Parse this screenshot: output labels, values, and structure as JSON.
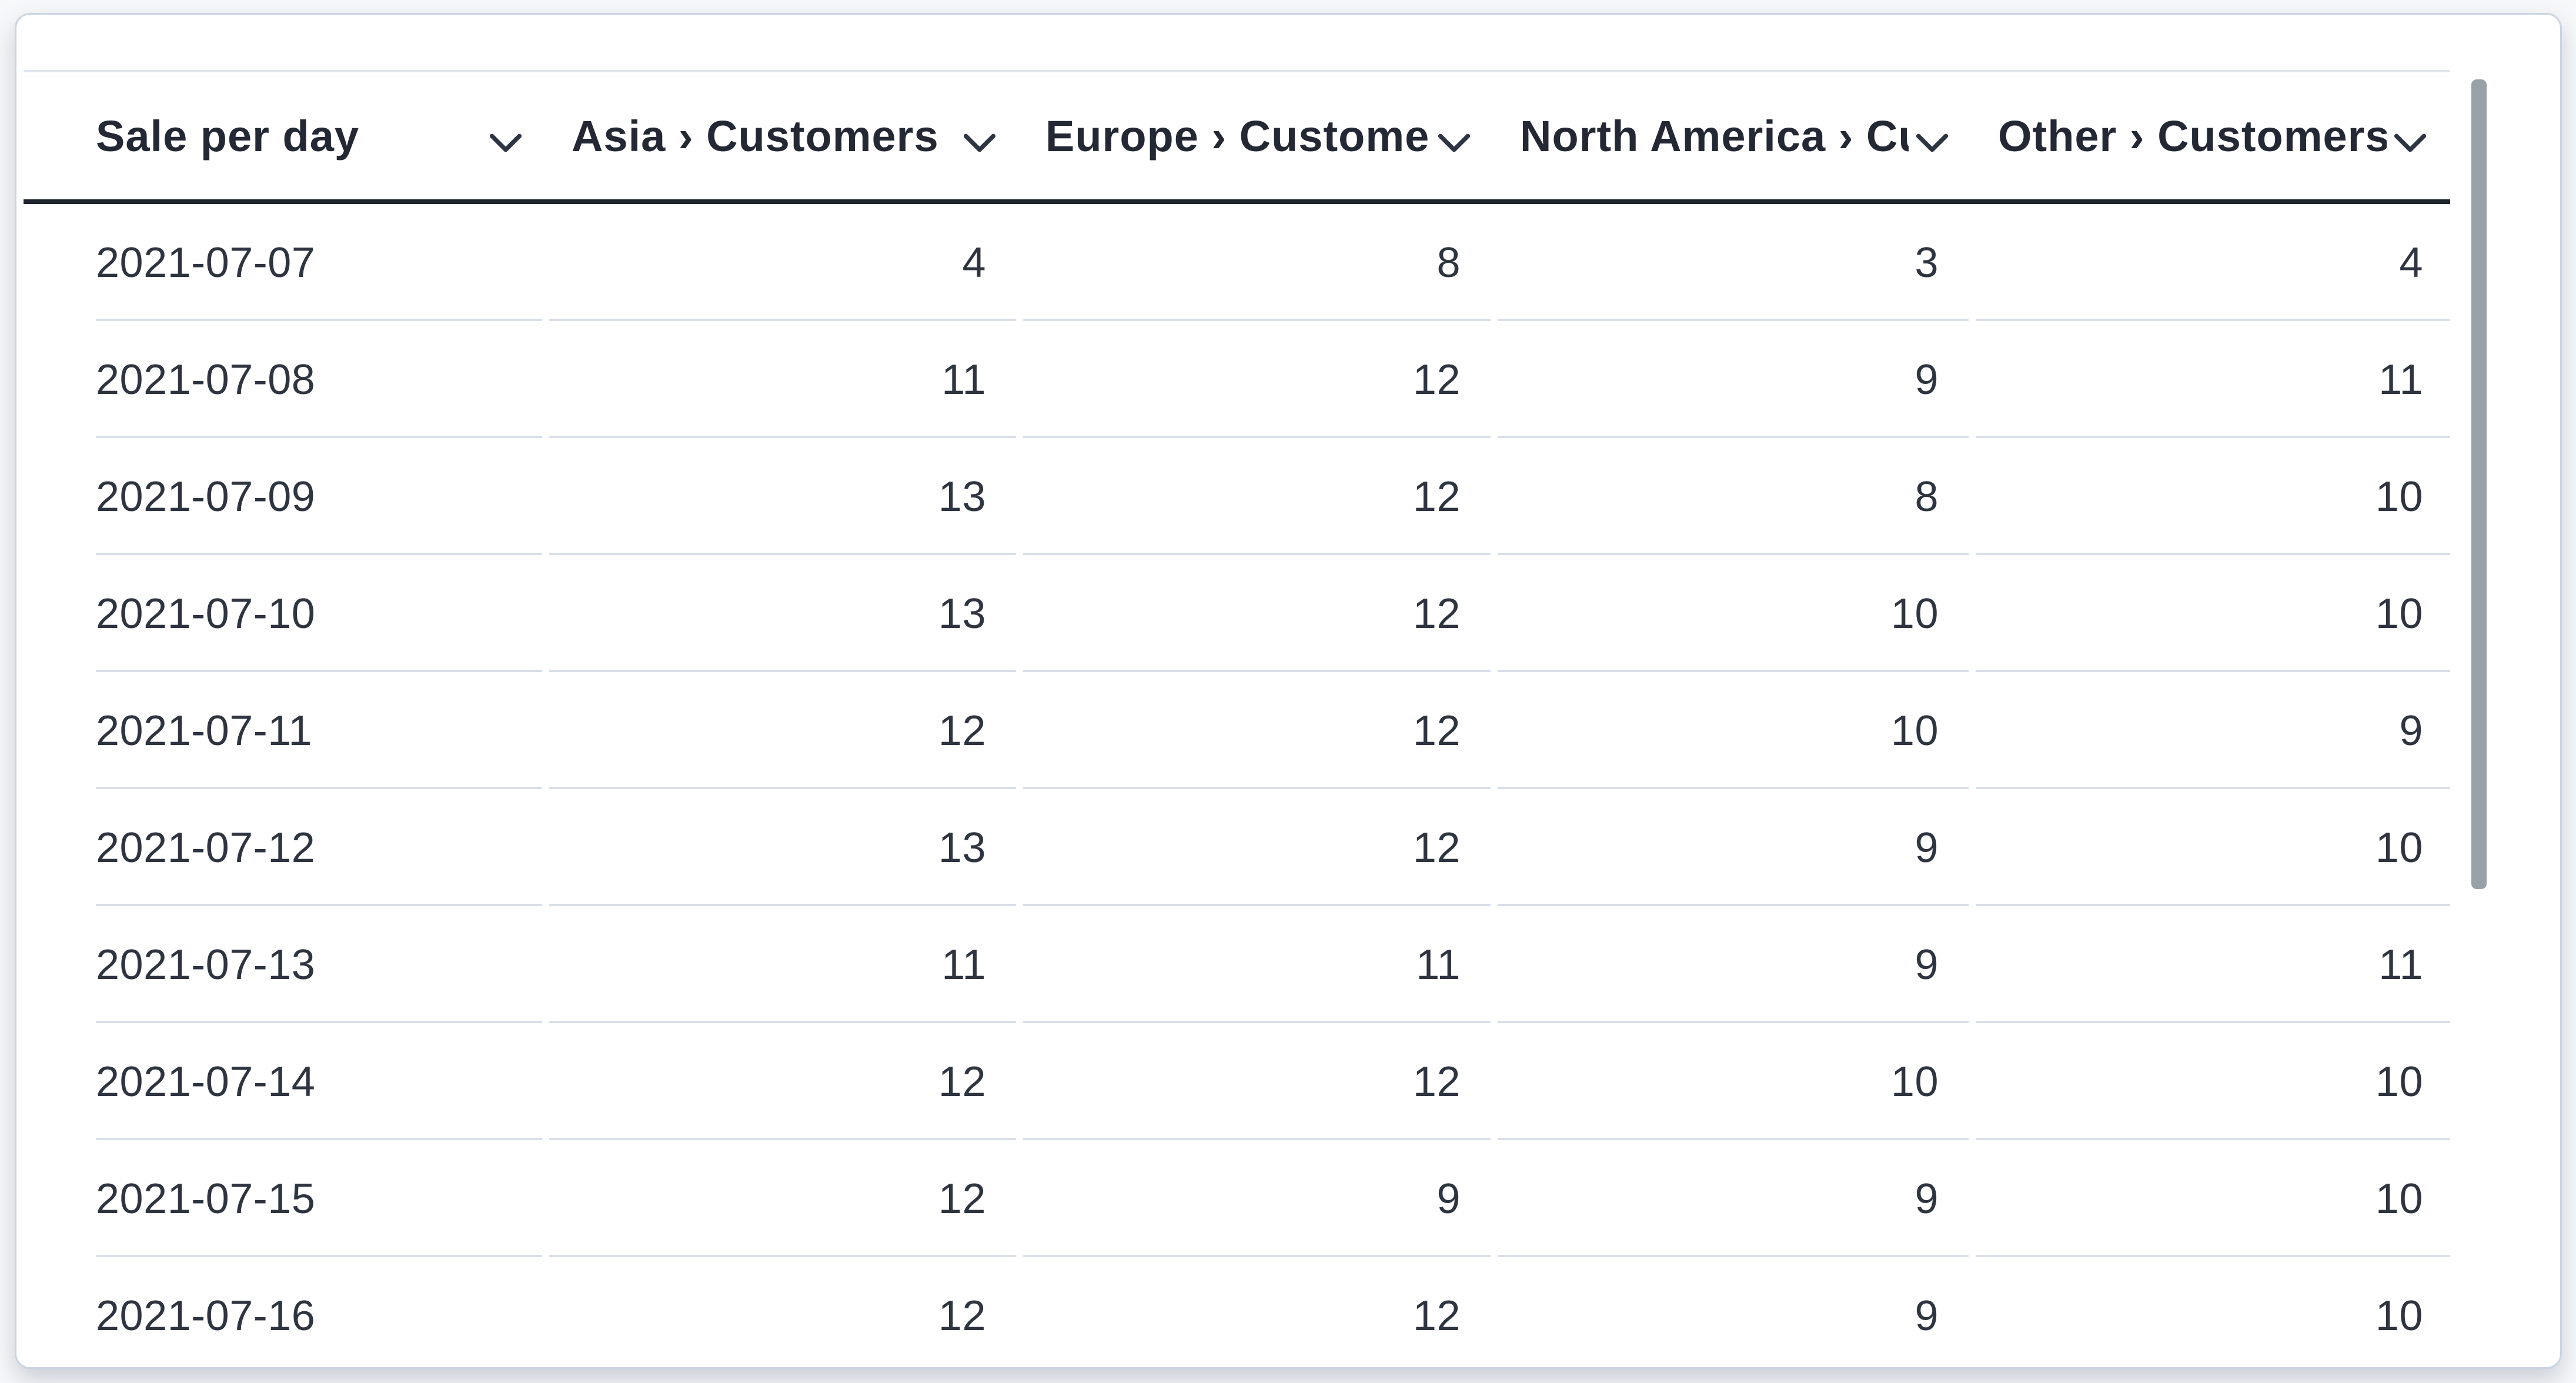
{
  "card": {
    "kind": "table-card"
  },
  "table": {
    "columns": [
      {
        "id": "date",
        "label": "Sale per day",
        "align": "left"
      },
      {
        "id": "asia",
        "label": "Asia › Customers",
        "align": "right"
      },
      {
        "id": "europe",
        "label": "Europe › Customers",
        "align": "right"
      },
      {
        "id": "north_america",
        "label": "North America › Customers",
        "align": "right"
      },
      {
        "id": "other",
        "label": "Other › Customers",
        "align": "right"
      }
    ],
    "rows": [
      [
        "2021-07-07",
        "4",
        "8",
        "3",
        "4"
      ],
      [
        "2021-07-08",
        "11",
        "12",
        "9",
        "11"
      ],
      [
        "2021-07-09",
        "13",
        "12",
        "8",
        "10"
      ],
      [
        "2021-07-10",
        "13",
        "12",
        "10",
        "10"
      ],
      [
        "2021-07-11",
        "12",
        "12",
        "10",
        "9"
      ],
      [
        "2021-07-12",
        "13",
        "12",
        "9",
        "10"
      ],
      [
        "2021-07-13",
        "11",
        "11",
        "9",
        "11"
      ],
      [
        "2021-07-14",
        "12",
        "12",
        "10",
        "10"
      ],
      [
        "2021-07-15",
        "12",
        "9",
        "9",
        "10"
      ],
      [
        "2021-07-16",
        "12",
        "12",
        "9",
        "10"
      ]
    ]
  },
  "icons": {
    "header_dropdown": "chevron-down-icon"
  },
  "scrollbar": {
    "orientation": "vertical"
  },
  "colors": {
    "header_text": "#232834",
    "body_text": "#2e3440",
    "header_underline": "#20242e",
    "row_divider": "#d9dfe9",
    "table_top_border": "#dfe4ef",
    "card_border": "#cad4e2",
    "card_bg": "#ffffff",
    "page_bg": "#f7f8fa",
    "scrollbar_thumb": "#9aa0a8"
  }
}
